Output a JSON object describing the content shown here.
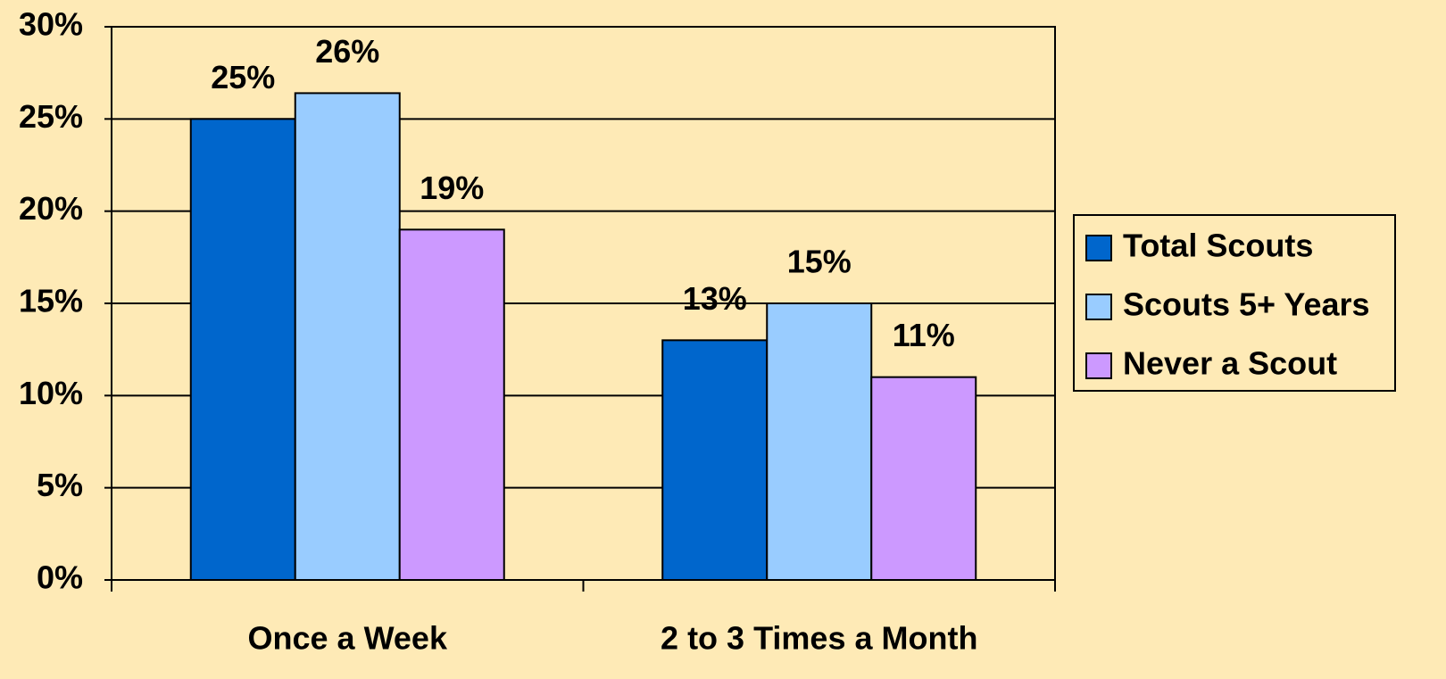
{
  "chart_data": {
    "type": "bar",
    "categories": [
      "Once a Week",
      "2 to 3 Times a Month"
    ],
    "series": [
      {
        "name": "Total Scouts",
        "color": "#0066cc",
        "values": [
          25,
          13
        ],
        "value_labels": [
          "25%",
          "13%"
        ]
      },
      {
        "name": "Scouts 5+ Years",
        "color": "#99ccff",
        "values": [
          26.4,
          15
        ],
        "value_labels": [
          "26%",
          "15%"
        ]
      },
      {
        "name": "Never a Scout",
        "color": "#cc99ff",
        "values": [
          19,
          11
        ],
        "value_labels": [
          "19%",
          "11%"
        ]
      }
    ],
    "ylim": [
      0,
      30
    ],
    "yticks": [
      {
        "value": 0,
        "label": "0%"
      },
      {
        "value": 5,
        "label": "5%"
      },
      {
        "value": 10,
        "label": "10%"
      },
      {
        "value": 15,
        "label": "15%"
      },
      {
        "value": 20,
        "label": "20%"
      },
      {
        "value": 25,
        "label": "25%"
      },
      {
        "value": 30,
        "label": "30%"
      }
    ],
    "grid": true,
    "legend": "right"
  }
}
